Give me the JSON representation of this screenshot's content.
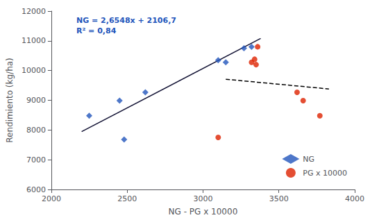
{
  "chart_data": {
    "type": "scatter",
    "xlabel": "NG - PG x 10000",
    "ylabel": "Rendimiento (kg/ha)",
    "xlim": [
      2000,
      4000
    ],
    "ylim": [
      6000,
      12000
    ],
    "xticks": [
      2000,
      2500,
      3000,
      3500,
      4000
    ],
    "yticks": [
      6000,
      7000,
      8000,
      9000,
      10000,
      11000,
      12000
    ],
    "grid": false,
    "legend": "lower right",
    "annotations": [
      {
        "text": "NG = 2,6548x + 2106,7\nR² = 0,84",
        "color": "#2255BB"
      }
    ],
    "series": [
      {
        "name": "NG",
        "type": "scatter",
        "color": "#2255BB",
        "marker": "diamond",
        "x": [
          2250,
          2450,
          2480,
          2620,
          3100,
          3150,
          3270,
          3320
        ],
        "values": [
          8480,
          8990,
          7680,
          9270,
          10350,
          10280,
          10750,
          10800
        ]
      },
      {
        "name": "PG x 10000",
        "type": "scatter",
        "color": "#DD2200",
        "marker": "circle",
        "x": [
          3100,
          3320,
          3340,
          3350,
          3360,
          3620,
          3660,
          3770
        ],
        "values": [
          7750,
          10280,
          10380,
          10200,
          10800,
          9270,
          8990,
          8480
        ]
      },
      {
        "type": "line",
        "color": "#111133",
        "line_style": "solid",
        "x": [
          2200,
          3380
        ],
        "values": [
          7947.26,
          11079.924
        ]
      },
      {
        "type": "line",
        "color": "#000000",
        "line_style": "dashed",
        "x": [
          3150,
          3830
        ],
        "values": [
          9708,
          9381.6
        ]
      }
    ]
  }
}
